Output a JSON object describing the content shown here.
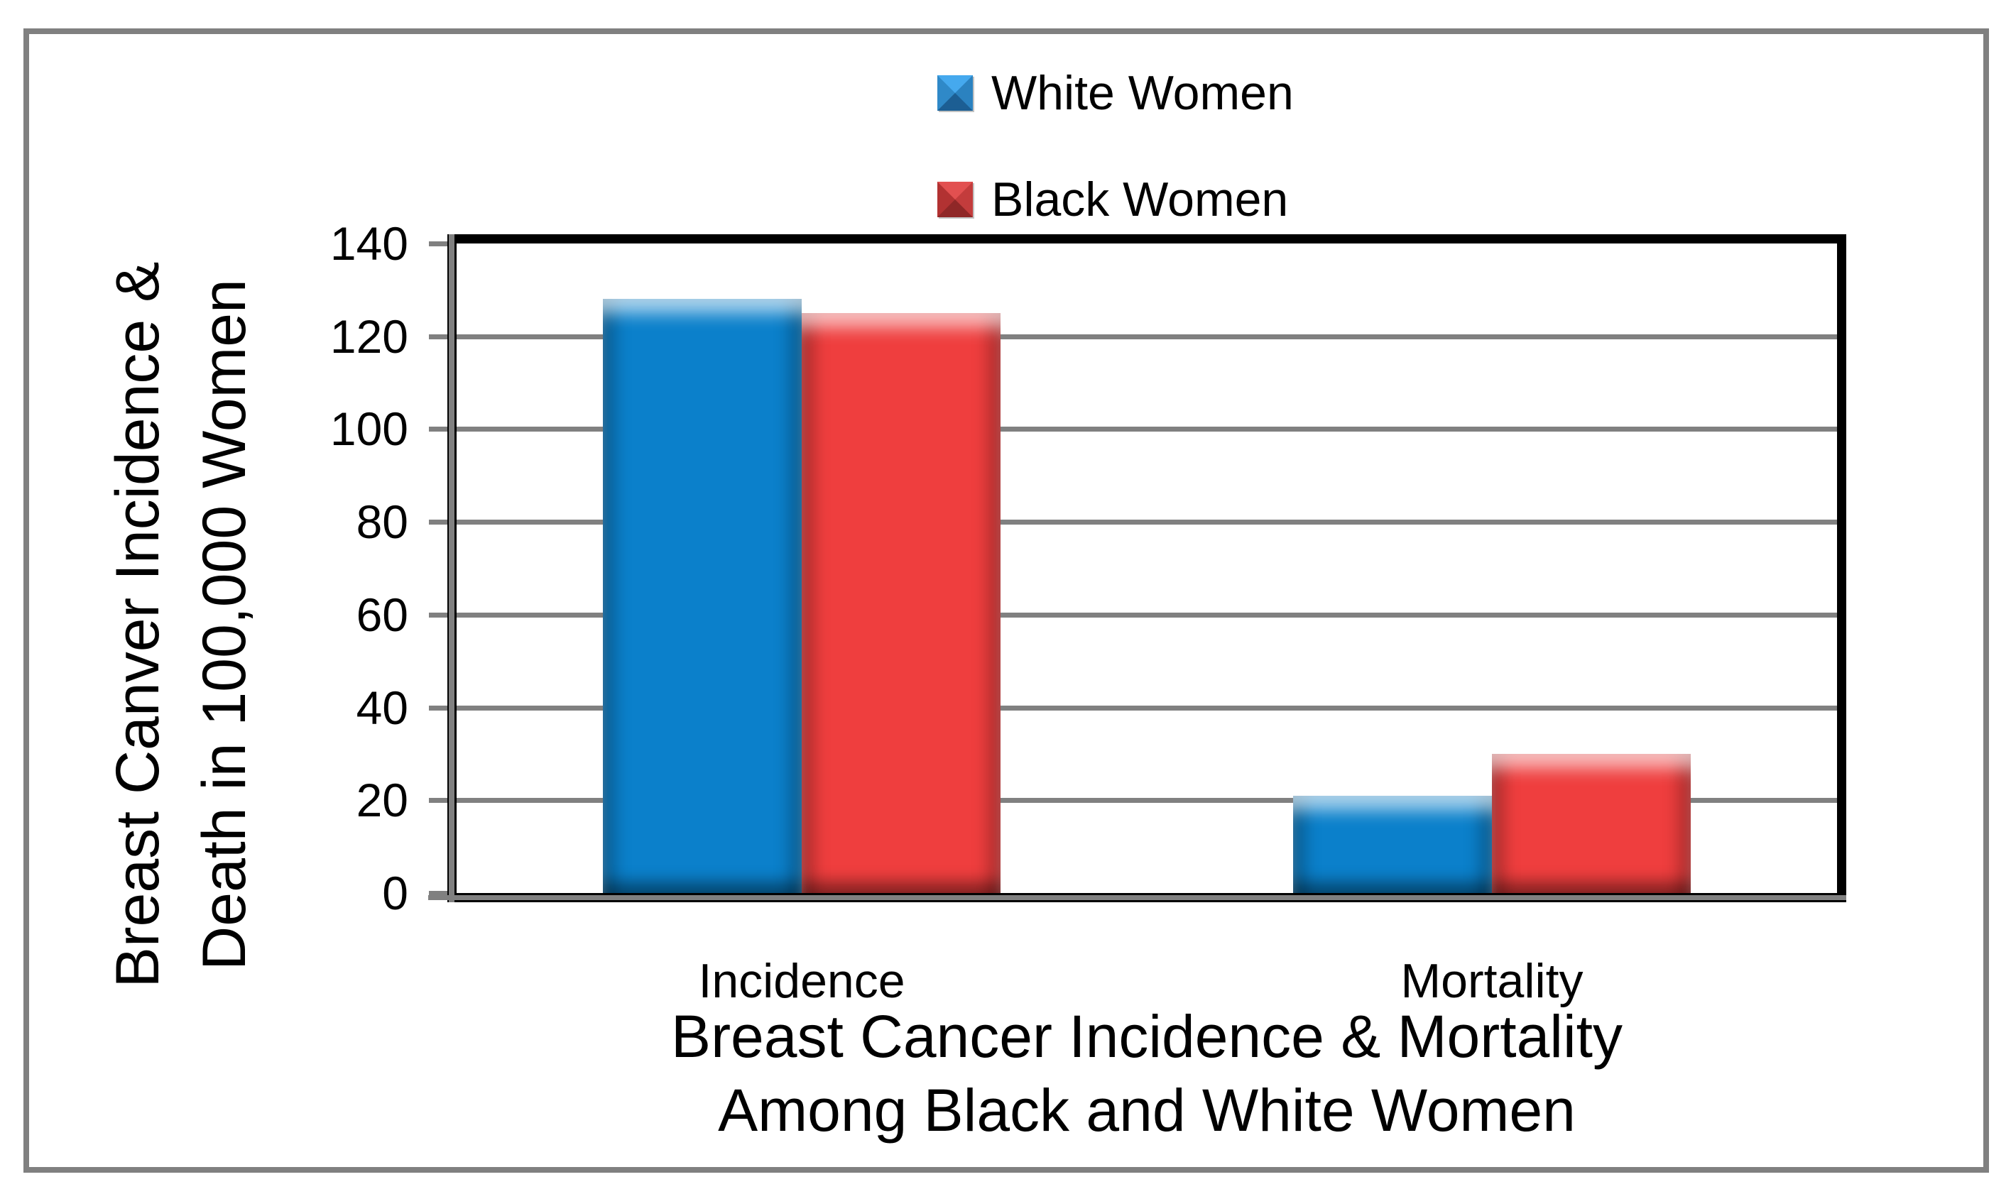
{
  "chart_data": {
    "type": "bar",
    "categories": [
      "Incidence",
      "Mortality"
    ],
    "series": [
      {
        "name": "White Women",
        "color": "#0B80CB",
        "values": [
          128,
          21
        ]
      },
      {
        "name": "Black Women",
        "color": "#EF3E3E",
        "values": [
          125,
          30
        ]
      }
    ],
    "ylim": [
      0,
      140
    ],
    "yticks": [
      0,
      20,
      40,
      60,
      80,
      100,
      120,
      140
    ],
    "grid": true,
    "legend_position": "top-center",
    "y_axis_title_lines": [
      "Breast Canver Incidence &",
      "Death in 100,000 Women"
    ],
    "title_lines": [
      "Breast Cancer Incidence & Mortality",
      "Among Black and White Women"
    ],
    "gridline_color": "#808080",
    "axis_color": "#808080",
    "plot_border_color": "#000000",
    "outer_frame_color": "#808080"
  },
  "legend": {
    "items": [
      {
        "label": "White Women",
        "marker_facets": {
          "top": "#45A9EE",
          "right": "#2B82C0",
          "bottom": "#1C5E93",
          "left": "#2F89C8"
        }
      },
      {
        "label": "Black Women",
        "marker_facets": {
          "top": "#E25050",
          "right": "#C33C3C",
          "bottom": "#8F2727",
          "left": "#B23232"
        }
      }
    ]
  }
}
